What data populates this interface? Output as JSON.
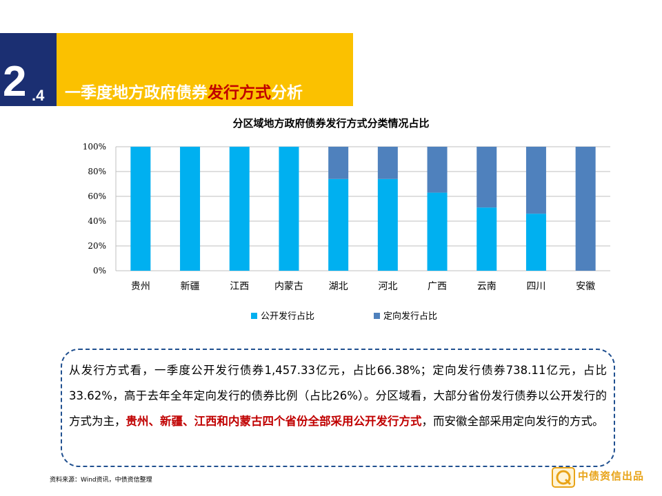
{
  "section": {
    "number": "2",
    "sub": ".4",
    "title_parts": [
      "一季度地方政府债券",
      "发行方式",
      "分析"
    ]
  },
  "chart_data": {
    "type": "bar",
    "stacked": true,
    "title": "分区域地方政府债券发行方式分类情况占比",
    "categories": [
      "贵州",
      "新疆",
      "江西",
      "内蒙古",
      "湖北",
      "河北",
      "广西",
      "云南",
      "四川",
      "安徽"
    ],
    "series": [
      {
        "name": "公开发行占比",
        "color": "#00b0f0",
        "values": [
          1.0,
          1.0,
          1.0,
          1.0,
          0.74,
          0.74,
          0.63,
          0.51,
          0.46,
          0.0
        ]
      },
      {
        "name": "定向发行占比",
        "color": "#4f81bd",
        "values": [
          0.0,
          0.0,
          0.0,
          0.0,
          0.26,
          0.26,
          0.37,
          0.49,
          0.54,
          1.0
        ]
      }
    ],
    "y_ticks": [
      "0%",
      "20%",
      "40%",
      "60%",
      "80%",
      "100%"
    ],
    "ylim": [
      0,
      1
    ],
    "grid": true,
    "legend_position": "bottom"
  },
  "note": {
    "parts": [
      "从发行方式看，一季度公开发行债券1,457.33亿元，占比66.38%；定向发行债券738.11亿元，占比33.62%，高于去年全年定向发行的债券比例（占比26%）。分区域看，大部分省份发行债券以公开发行的方式为主，",
      "贵州、新疆、江西和内蒙古四个省份全部采用公开发行方式",
      "，而安徽全部采用定向发行的方式。"
    ]
  },
  "source": "资料来源：Wind资讯，中债资信整理",
  "logo": {
    "text": "中债资信出品",
    "icon": "zhongzhai-logo-icon"
  },
  "colors": {
    "navy": "#1b2f72",
    "yellow": "#fbc100",
    "highlight": "#c00000",
    "border": "#1f4f8f"
  }
}
